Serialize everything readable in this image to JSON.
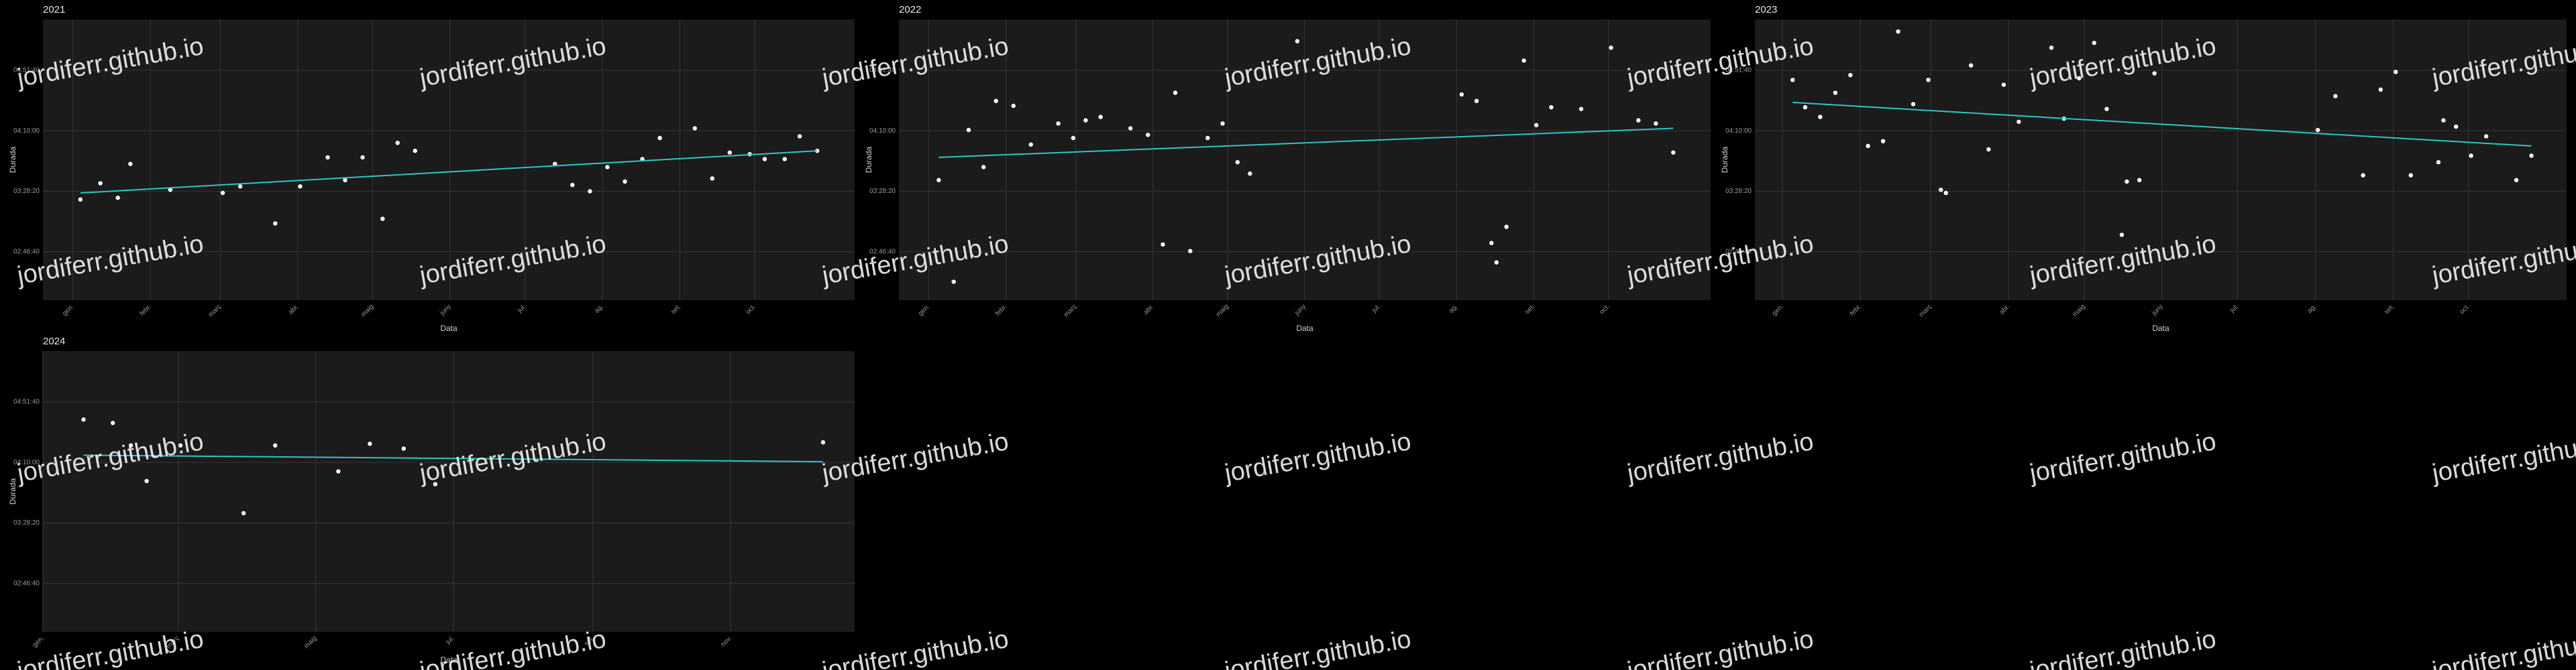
{
  "watermark": "jordiferr.github.io",
  "chart_data": [
    {
      "type": "scatter",
      "title": "2021",
      "xlabel": "Data",
      "ylabel": "Durada",
      "grid": true,
      "color": "#ffffff",
      "trend_color": "#2ec4c4",
      "xlim": [
        "2020-12-20",
        "2021-11-10"
      ],
      "xticks": [
        {
          "value": "2021-01-01",
          "label": "gen."
        },
        {
          "value": "2021-02-01",
          "label": "febr."
        },
        {
          "value": "2021-03-01",
          "label": "març"
        },
        {
          "value": "2021-04-01",
          "label": "abr."
        },
        {
          "value": "2021-05-01",
          "label": "maig"
        },
        {
          "value": "2021-06-01",
          "label": "juny"
        },
        {
          "value": "2021-07-01",
          "label": "jul."
        },
        {
          "value": "2021-08-01",
          "label": "ag."
        },
        {
          "value": "2021-09-01",
          "label": "set."
        },
        {
          "value": "2021-10-01",
          "label": "oct."
        }
      ],
      "ylim": [
        8000,
        19600
      ],
      "yticks": [
        {
          "value": 10000,
          "label": "02:46:40"
        },
        {
          "value": 12500,
          "label": "03:28:20"
        },
        {
          "value": 15000,
          "label": "04:10:00"
        },
        {
          "value": 17500,
          "label": "04:51:40"
        }
      ],
      "x": [
        "2021-01-04",
        "2021-01-12",
        "2021-01-19",
        "2021-01-24",
        "2021-02-09",
        "2021-03-02",
        "2021-03-09",
        "2021-03-23",
        "2021-04-02",
        "2021-04-13",
        "2021-04-20",
        "2021-04-27",
        "2021-05-05",
        "2021-05-11",
        "2021-05-18",
        "2021-07-13",
        "2021-07-20",
        "2021-07-27",
        "2021-08-03",
        "2021-08-10",
        "2021-08-17",
        "2021-08-24",
        "2021-09-07",
        "2021-09-14",
        "2021-09-21",
        "2021-09-29",
        "2021-10-05",
        "2021-10-13",
        "2021-10-19",
        "2021-10-26"
      ],
      "values": [
        12160,
        12830,
        12230,
        13630,
        12560,
        12430,
        12700,
        11170,
        12700,
        13900,
        12960,
        13900,
        11360,
        14500,
        14170,
        13630,
        12760,
        12500,
        13500,
        12900,
        13830,
        14700,
        15100,
        13030,
        14100,
        14030,
        13830,
        13830,
        14770,
        14170
      ],
      "trend": {
        "x": [
          "2021-01-04",
          "2021-10-26"
        ],
        "values": [
          12430,
          14170
        ]
      }
    },
    {
      "type": "scatter",
      "title": "2022",
      "xlabel": "Data",
      "ylabel": "Durada",
      "grid": true,
      "color": "#ffffff",
      "trend_color": "#2ec4c4",
      "xlim": [
        "2021-12-20",
        "2022-11-11"
      ],
      "xticks": [
        {
          "value": "2022-01-01",
          "label": "gen."
        },
        {
          "value": "2022-02-01",
          "label": "febr."
        },
        {
          "value": "2022-03-01",
          "label": "març"
        },
        {
          "value": "2022-04-01",
          "label": "abr."
        },
        {
          "value": "2022-05-01",
          "label": "maig"
        },
        {
          "value": "2022-06-01",
          "label": "juny"
        },
        {
          "value": "2022-07-01",
          "label": "jul."
        },
        {
          "value": "2022-08-01",
          "label": "ag."
        },
        {
          "value": "2022-09-01",
          "label": "set."
        },
        {
          "value": "2022-10-01",
          "label": "oct."
        }
      ],
      "ylim": [
        8000,
        19600
      ],
      "yticks": [
        {
          "value": 10000,
          "label": "02:46:40"
        },
        {
          "value": 12500,
          "label": "03:28:20"
        },
        {
          "value": 15000,
          "label": "04:10:00"
        },
        {
          "value": 17500,
          "label": "04:51:40"
        }
      ],
      "x": [
        "2022-01-05",
        "2022-01-11",
        "2022-01-17",
        "2022-01-23",
        "2022-01-28",
        "2022-02-04",
        "2022-02-11",
        "2022-02-22",
        "2022-02-28",
        "2022-03-05",
        "2022-03-11",
        "2022-03-23",
        "2022-03-30",
        "2022-04-05",
        "2022-04-10",
        "2022-04-16",
        "2022-04-23",
        "2022-04-29",
        "2022-05-05",
        "2022-05-10",
        "2022-05-29",
        "2022-08-03",
        "2022-08-09",
        "2022-08-15",
        "2022-08-17",
        "2022-08-21",
        "2022-08-28",
        "2022-09-02",
        "2022-09-08",
        "2022-09-20",
        "2022-10-02",
        "2022-10-13",
        "2022-10-20",
        "2022-10-27"
      ],
      "values": [
        12960,
        8760,
        15030,
        13500,
        16230,
        16030,
        14430,
        15300,
        14700,
        15430,
        15570,
        15100,
        14830,
        10300,
        16570,
        10030,
        14700,
        15300,
        13700,
        13230,
        18700,
        16500,
        16230,
        10360,
        9560,
        11030,
        17900,
        15230,
        15970,
        15900,
        18430,
        15430,
        15300,
        14100
      ],
      "trend": {
        "x": [
          "2022-01-05",
          "2022-10-27"
        ],
        "values": [
          13900,
          15100
        ]
      }
    },
    {
      "type": "scatter",
      "title": "2023",
      "xlabel": "Data",
      "ylabel": "Durada",
      "grid": true,
      "color": "#ffffff",
      "trend_color": "#2ec4c4",
      "xlim": [
        "2022-12-21",
        "2023-11-09"
      ],
      "xticks": [
        {
          "value": "2023-01-01",
          "label": "gen."
        },
        {
          "value": "2023-02-01",
          "label": "febr."
        },
        {
          "value": "2023-03-01",
          "label": "març"
        },
        {
          "value": "2023-04-01",
          "label": "abr."
        },
        {
          "value": "2023-05-01",
          "label": "maig"
        },
        {
          "value": "2023-06-01",
          "label": "juny"
        },
        {
          "value": "2023-07-01",
          "label": "jul."
        },
        {
          "value": "2023-08-01",
          "label": "ag."
        },
        {
          "value": "2023-09-01",
          "label": "set."
        },
        {
          "value": "2023-10-01",
          "label": "oct."
        }
      ],
      "ylim": [
        8000,
        19600
      ],
      "yticks": [
        {
          "value": 10000,
          "label": "02:46:40"
        },
        {
          "value": 12500,
          "label": "03:28:20"
        },
        {
          "value": 15000,
          "label": "04:10:00"
        },
        {
          "value": 17500,
          "label": "04:51:40"
        }
      ],
      "x": [
        "2023-01-05",
        "2023-01-10",
        "2023-01-16",
        "2023-01-22",
        "2023-01-28",
        "2023-02-04",
        "2023-02-10",
        "2023-02-16",
        "2023-02-22",
        "2023-02-28",
        "2023-03-05",
        "2023-03-07",
        "2023-03-17",
        "2023-03-24",
        "2023-03-30",
        "2023-04-05",
        "2023-04-18",
        "2023-04-23",
        "2023-04-29",
        "2023-05-05",
        "2023-05-10",
        "2023-05-16",
        "2023-05-18",
        "2023-05-23",
        "2023-05-29",
        "2023-08-02",
        "2023-08-09",
        "2023-08-20",
        "2023-08-27",
        "2023-09-02",
        "2023-09-08",
        "2023-09-19",
        "2023-09-21",
        "2023-09-26",
        "2023-10-02",
        "2023-10-08",
        "2023-10-20",
        "2023-10-26"
      ],
      "values": [
        17100,
        15970,
        15570,
        16570,
        17300,
        14370,
        14570,
        19100,
        16100,
        17100,
        12560,
        12430,
        17700,
        14230,
        16900,
        15370,
        18430,
        15500,
        17170,
        18630,
        15900,
        10700,
        12900,
        12960,
        17370,
        15030,
        16430,
        13160,
        16700,
        17430,
        13160,
        13700,
        15430,
        15170,
        13970,
        14770,
        12960,
        13970
      ],
      "trend": {
        "x": [
          "2023-01-05",
          "2023-10-26"
        ],
        "values": [
          16170,
          14370
        ]
      }
    },
    {
      "type": "scatter",
      "title": "2024",
      "xlabel": "Data",
      "ylabel": "Durada",
      "grid": true,
      "color": "#ffffff",
      "trend_color": "#2ec4c4",
      "xlim": [
        "2024-01-01",
        "2024-12-26"
      ],
      "xticks": [
        {
          "value": "2024-01-01",
          "label": "gen."
        },
        {
          "value": "2024-03-01",
          "label": "març"
        },
        {
          "value": "2024-05-01",
          "label": "maig"
        },
        {
          "value": "2024-07-01",
          "label": "jul."
        },
        {
          "value": "2024-09-01",
          "label": "set."
        },
        {
          "value": "2024-11-01",
          "label": "nov."
        }
      ],
      "ylim": [
        8000,
        19600
      ],
      "yticks": [
        {
          "value": 10000,
          "label": "02:46:40"
        },
        {
          "value": 12500,
          "label": "03:28:20"
        },
        {
          "value": 15000,
          "label": "04:10:00"
        },
        {
          "value": 17500,
          "label": "04:51:40"
        }
      ],
      "x": [
        "2024-01-19",
        "2024-02-01",
        "2024-02-09",
        "2024-02-16",
        "2024-03-02",
        "2024-03-30",
        "2024-04-13",
        "2024-05-11",
        "2024-05-25",
        "2024-06-09",
        "2024-06-23",
        "2024-12-12"
      ],
      "values": [
        16770,
        16630,
        15700,
        14230,
        15700,
        12900,
        15700,
        14630,
        15770,
        15570,
        14100,
        15830
      ],
      "trend": {
        "x": [
          "2024-01-19",
          "2024-12-12"
        ],
        "values": [
          15300,
          15030
        ]
      }
    }
  ]
}
